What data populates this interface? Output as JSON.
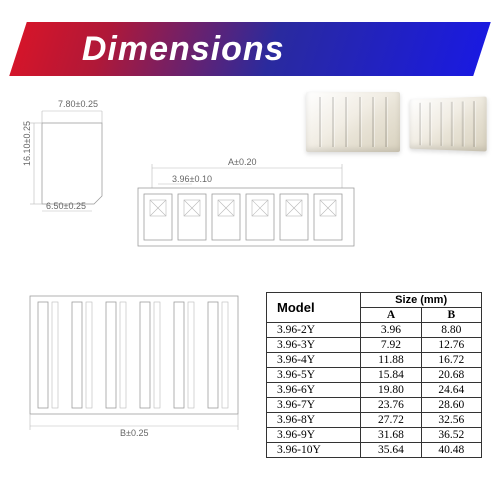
{
  "banner": {
    "title": "Dimensions"
  },
  "dimensions": {
    "side_width": "7.80±0.25",
    "side_height": "16.10±0.25",
    "side_depth": "6.50±0.25",
    "front_A": "A±0.20",
    "pitch": "3.96±0.10",
    "bottom_B": "B±0.25"
  },
  "table": {
    "header_model": "Model",
    "header_size": "Size  (mm)",
    "header_A": "A",
    "header_B": "B",
    "rows": [
      {
        "model": "3.96-2Y",
        "a": "3.96",
        "b": "8.80"
      },
      {
        "model": "3.96-3Y",
        "a": "7.92",
        "b": "12.76"
      },
      {
        "model": "3.96-4Y",
        "a": "11.88",
        "b": "16.72"
      },
      {
        "model": "3.96-5Y",
        "a": "15.84",
        "b": "20.68"
      },
      {
        "model": "3.96-6Y",
        "a": "19.80",
        "b": "24.64"
      },
      {
        "model": "3.96-7Y",
        "a": "23.76",
        "b": "28.60"
      },
      {
        "model": "3.96-8Y",
        "a": "27.72",
        "b": "32.56"
      },
      {
        "model": "3.96-9Y",
        "a": "31.68",
        "b": "36.52"
      },
      {
        "model": "3.96-10Y",
        "a": "35.64",
        "b": "40.48"
      }
    ]
  },
  "colors": {
    "line": "#999999",
    "text": "#666666"
  }
}
